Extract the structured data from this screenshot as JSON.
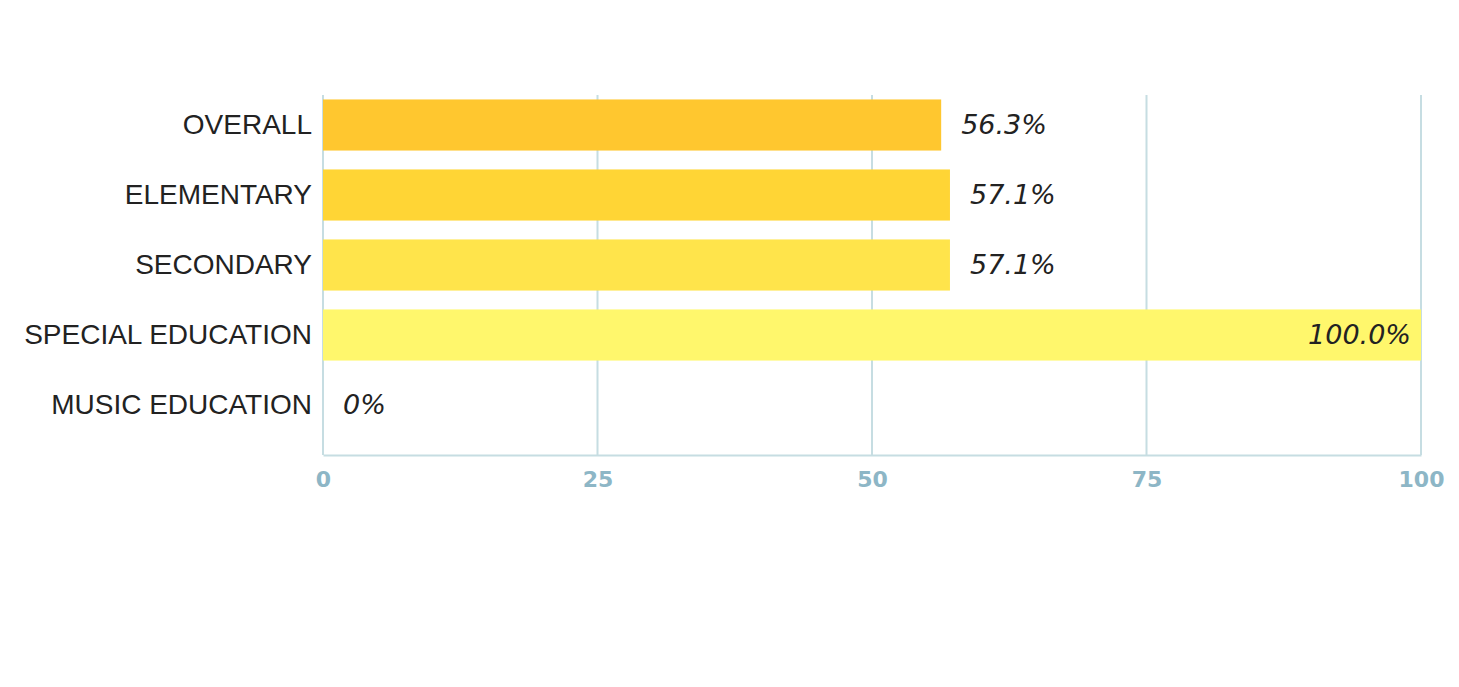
{
  "chart_data": {
    "type": "bar",
    "orientation": "horizontal",
    "categories": [
      "OVERALL",
      "ELEMENTARY",
      "SECONDARY",
      "SPECIAL EDUCATION",
      "MUSIC EDUCATION"
    ],
    "values": [
      56.3,
      57.1,
      57.1,
      100.0,
      0
    ],
    "value_labels": [
      "56.3%",
      "57.1%",
      "57.1%",
      "100.0%",
      "0%"
    ],
    "colors": [
      "#ffc72f",
      "#ffd535",
      "#ffe44b",
      "#fff76c",
      "#fff98a"
    ],
    "xlim": [
      0,
      100
    ],
    "xticks": [
      0,
      25,
      50,
      75,
      100
    ],
    "grid": true,
    "data_labels": true
  }
}
